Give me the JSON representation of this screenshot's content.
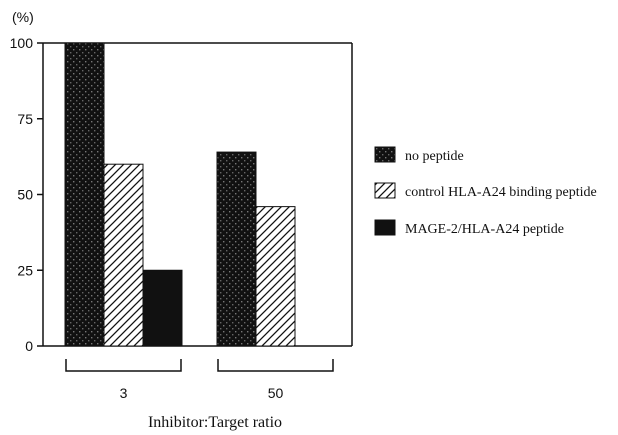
{
  "chart_data": {
    "type": "bar",
    "ylabel": "(%)",
    "xlabel": "Inhibitor:Target ratio",
    "ylim": [
      0,
      100
    ],
    "yticks": [
      "0",
      "25",
      "50",
      "75",
      "100"
    ],
    "categories": [
      "3",
      "50"
    ],
    "series": [
      {
        "name": "no peptide",
        "pattern": "dotted",
        "values": [
          100,
          64
        ]
      },
      {
        "name": "control HLA-A24 binding peptide",
        "pattern": "hatched",
        "values": [
          60,
          46
        ]
      },
      {
        "name": "MAGE-2/HLA-A24 peptide",
        "pattern": "solid",
        "values": [
          25,
          0
        ]
      }
    ],
    "legend_position": "right",
    "grid": false
  },
  "colors": {
    "ink": "#111111",
    "background": "#ffffff"
  }
}
